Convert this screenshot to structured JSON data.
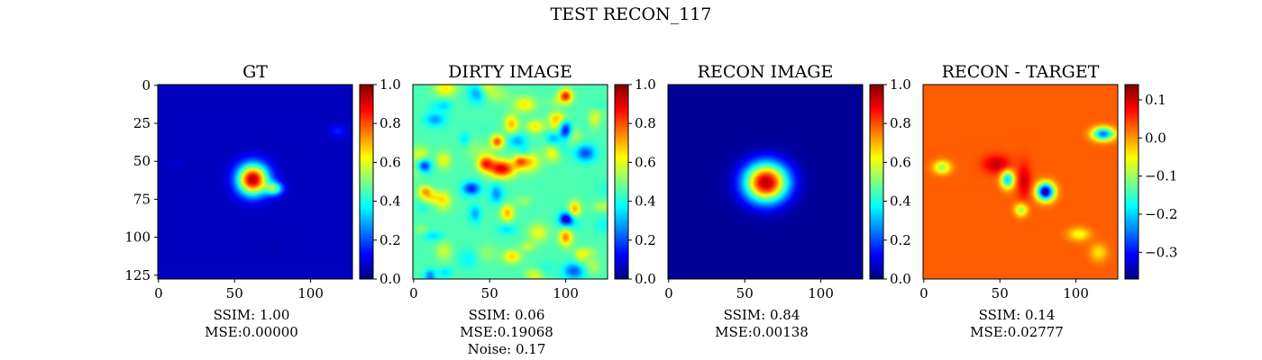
{
  "figure": {
    "suptitle": "TEST RECON_117"
  },
  "colormap": "jet",
  "chart_data": [
    {
      "type": "heatmap",
      "title": "GT",
      "image_size": [
        128,
        128
      ],
      "x_ticks": [
        0,
        50,
        100
      ],
      "y_ticks": [
        0,
        25,
        50,
        75,
        100,
        125
      ],
      "show_y_ticks": true,
      "colorbar": {
        "range": [
          0.0,
          1.0
        ],
        "ticks": [
          0.0,
          0.2,
          0.4,
          0.6,
          0.8,
          1.0
        ],
        "tick_labels": [
          "0.0",
          "0.2",
          "0.4",
          "0.6",
          "0.8",
          "1.0"
        ]
      },
      "caption_lines": [
        "SSIM: 1.00",
        "MSE:0.00000"
      ],
      "background_level": 0.06,
      "blobs": [
        {
          "x": 62,
          "y": 62,
          "sx": 7,
          "sy": 7,
          "value": 0.95
        },
        {
          "x": 76,
          "y": 68,
          "sx": 4,
          "sy": 3,
          "value": 0.45
        },
        {
          "x": 118,
          "y": 30,
          "sx": 4,
          "sy": 3,
          "value": 0.15
        },
        {
          "x": 12,
          "y": 52,
          "sx": 3,
          "sy": 3,
          "value": 0.08
        },
        {
          "x": 102,
          "y": 98,
          "sx": 5,
          "sy": 3,
          "value": 0.06
        },
        {
          "x": 73,
          "y": 105,
          "sx": 6,
          "sy": 4,
          "value": 0.05
        }
      ]
    },
    {
      "type": "heatmap",
      "title": "DIRTY IMAGE",
      "image_size": [
        128,
        128
      ],
      "x_ticks": [
        0,
        50,
        100
      ],
      "show_y_ticks": false,
      "colorbar": {
        "range": [
          0.0,
          1.0
        ],
        "ticks": [
          0.0,
          0.2,
          0.4,
          0.6,
          0.8,
          1.0
        ],
        "tick_labels": [
          "0.0",
          "0.2",
          "0.4",
          "0.6",
          "0.8",
          "1.0"
        ]
      },
      "caption_lines": [
        "SSIM: 0.06",
        "MSE:0.19068",
        "Noise: 0.17"
      ],
      "background_level": 0.45,
      "noise_seed": 117,
      "blobs": [
        {
          "x": 58,
          "y": 55,
          "sx": 6,
          "sy": 4,
          "value": 0.9
        },
        {
          "x": 100,
          "y": 7,
          "sx": 3,
          "sy": 3,
          "value": 0.85
        },
        {
          "x": 55,
          "y": 37,
          "sx": 3,
          "sy": 3,
          "value": 0.8
        },
        {
          "x": 80,
          "y": 27,
          "sx": 4,
          "sy": 3,
          "value": 0.65
        },
        {
          "x": 100,
          "y": 100,
          "sx": 3,
          "sy": 4,
          "value": 0.75
        },
        {
          "x": 70,
          "y": 50,
          "sx": 3,
          "sy": 3,
          "value": 0.7
        },
        {
          "x": 100,
          "y": 30,
          "sx": 3,
          "sy": 4,
          "value": 0.05
        },
        {
          "x": 38,
          "y": 68,
          "sx": 4,
          "sy": 3,
          "value": 0.15
        },
        {
          "x": 100,
          "y": 88,
          "sx": 3,
          "sy": 3,
          "value": 0.1
        },
        {
          "x": 7,
          "y": 53,
          "sx": 3,
          "sy": 3,
          "value": 0.15
        }
      ]
    },
    {
      "type": "heatmap",
      "title": "RECON IMAGE",
      "image_size": [
        128,
        128
      ],
      "x_ticks": [
        0,
        50,
        100
      ],
      "show_y_ticks": false,
      "colorbar": {
        "range": [
          0.0,
          1.0
        ],
        "ticks": [
          0.0,
          0.2,
          0.4,
          0.6,
          0.8,
          1.0
        ],
        "tick_labels": [
          "0.0",
          "0.2",
          "0.4",
          "0.6",
          "0.8",
          "1.0"
        ]
      },
      "caption_lines": [
        "SSIM: 0.84",
        "MSE:0.00138"
      ],
      "background_level": 0.02,
      "blobs": [
        {
          "x": 64,
          "y": 64,
          "sx": 10,
          "sy": 9,
          "value": 0.95
        }
      ]
    },
    {
      "type": "heatmap",
      "title": "RECON - TARGET",
      "image_size": [
        128,
        128
      ],
      "x_ticks": [
        0,
        50,
        100
      ],
      "show_y_ticks": false,
      "colorbar": {
        "range": [
          -0.37,
          0.14
        ],
        "ticks": [
          0.1,
          0.0,
          -0.1,
          -0.2,
          -0.3
        ],
        "tick_labels": [
          "0.1",
          "0.0",
          "−0.1",
          "−0.2",
          "−0.3"
        ]
      },
      "caption_lines": [
        "SSIM: 0.14",
        "MSE:0.02777"
      ],
      "background_level": 0.03,
      "blobs": [
        {
          "x": 48,
          "y": 52,
          "sx": 6,
          "sy": 4,
          "value": 0.11
        },
        {
          "x": 66,
          "y": 63,
          "sx": 3,
          "sy": 8,
          "value": 0.1
        },
        {
          "x": 55,
          "y": 62,
          "sx": 3,
          "sy": 4,
          "value": -0.2
        },
        {
          "x": 80,
          "y": 70,
          "sx": 4,
          "sy": 4,
          "value": -0.35
        },
        {
          "x": 118,
          "y": 32,
          "sx": 5,
          "sy": 3,
          "value": -0.25
        },
        {
          "x": 12,
          "y": 54,
          "sx": 4,
          "sy": 3,
          "value": -0.1
        },
        {
          "x": 64,
          "y": 82,
          "sx": 3,
          "sy": 3,
          "value": -0.1
        },
        {
          "x": 102,
          "y": 98,
          "sx": 5,
          "sy": 3,
          "value": -0.06
        },
        {
          "x": 115,
          "y": 110,
          "sx": 4,
          "sy": 4,
          "value": -0.04
        }
      ]
    }
  ]
}
